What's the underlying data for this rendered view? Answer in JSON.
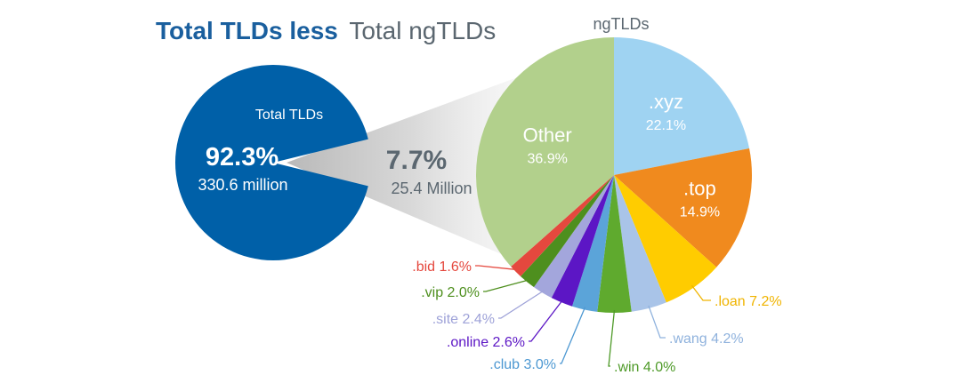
{
  "title": {
    "part1": "Total TLDs less",
    "part2": "Total ngTLDs"
  },
  "colors": {
    "title_part1": "#1a5f9e",
    "title_part2": "#5b6770",
    "total_pie": "#0060a8",
    "wedge": "#c0c0c0",
    "callout_text": "#5b6770"
  },
  "total": {
    "label": "Total TLDs",
    "percent_label": "92.3%",
    "amount_label": "330.6 million",
    "percent": 92.3
  },
  "callout": {
    "percent_label": "7.7%",
    "amount_label": "25.4 Million",
    "percent": 7.7
  },
  "chart_data": [
    {
      "type": "pie",
      "title": "",
      "slices": [
        {
          "label": "Total TLDs",
          "value": 92.3
        },
        {
          "label": "",
          "value": 7.7
        }
      ]
    },
    {
      "type": "pie",
      "title": "ngTLDs",
      "slices": [
        {
          "label": ".xyz",
          "value_label": "22.1%",
          "value": 22.1,
          "color": "#9fd3f2",
          "text_color": "#ffffff",
          "placement": "inside"
        },
        {
          "label": ".top",
          "value_label": "14.9%",
          "value": 14.9,
          "color": "#f08a1e",
          "text_color": "#ffffff",
          "placement": "inside"
        },
        {
          "label": ".loan",
          "value_label": "7.2%",
          "value": 7.2,
          "color": "#ffcc00",
          "text_color": "#f0b400",
          "placement": "outside"
        },
        {
          "label": ".wang",
          "value_label": "4.2%",
          "value": 4.2,
          "color": "#a9c4e8",
          "text_color": "#8fb2dd",
          "placement": "outside"
        },
        {
          "label": ".win",
          "value_label": "4.0%",
          "value": 4.0,
          "color": "#5faa2e",
          "text_color": "#4e9a28",
          "placement": "outside"
        },
        {
          "label": ".club",
          "value_label": "3.0%",
          "value": 3.0,
          "color": "#5ba4d9",
          "text_color": "#4d98d2",
          "placement": "outside"
        },
        {
          "label": ".online",
          "value_label": "2.6%",
          "value": 2.6,
          "color": "#5c16c5",
          "text_color": "#5c16c5",
          "placement": "outside"
        },
        {
          "label": ".site",
          "value_label": "2.4%",
          "value": 2.4,
          "color": "#a3a6dc",
          "text_color": "#9ea2d8",
          "placement": "outside"
        },
        {
          "label": ".vip",
          "value_label": "2.0%",
          "value": 2.0,
          "color": "#4e8f1e",
          "text_color": "#4e8f1e",
          "placement": "outside"
        },
        {
          "label": ".bid",
          "value_label": "1.6%",
          "value": 1.6,
          "color": "#e5483e",
          "text_color": "#e5483e",
          "placement": "outside"
        },
        {
          "label": "Other",
          "value_label": "36.9%",
          "value": 36.9,
          "color": "#b2d08c",
          "text_color": "#ffffff",
          "placement": "inside"
        }
      ]
    }
  ]
}
